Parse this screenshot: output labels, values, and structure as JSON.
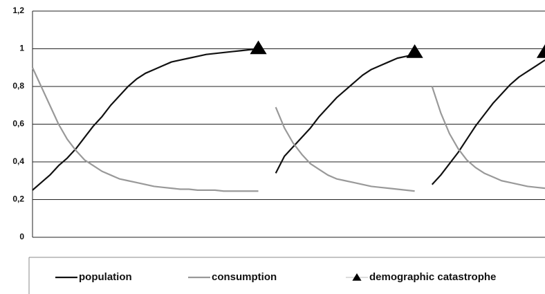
{
  "chart_data": {
    "type": "line",
    "categories": [
      null,
      null,
      null,
      null,
      null,
      null,
      null,
      null,
      null,
      null,
      null,
      null,
      null,
      null,
      null,
      null,
      null,
      null,
      null,
      null,
      null,
      null,
      null,
      null,
      null,
      null,
      null,
      null,
      null,
      null,
      null,
      null,
      null,
      null,
      null,
      null,
      null,
      null,
      null,
      null,
      null,
      null,
      null,
      null,
      null,
      null,
      null,
      null,
      null,
      null,
      null,
      null,
      null,
      null,
      null,
      null,
      null,
      null,
      null,
      null
    ],
    "series": [
      {
        "name": "population",
        "color": "#111111",
        "style": "line",
        "values": [
          0.25,
          0.29,
          0.33,
          0.38,
          0.42,
          0.47,
          0.53,
          0.59,
          0.64,
          0.7,
          0.75,
          0.8,
          0.84,
          0.87,
          0.89,
          0.91,
          0.93,
          0.94,
          0.95,
          0.96,
          0.97,
          0.975,
          0.98,
          0.985,
          0.99,
          0.995,
          1,
          null,
          0.34,
          0.43,
          0.48,
          0.53,
          0.58,
          0.64,
          0.69,
          0.74,
          0.78,
          0.82,
          0.86,
          0.89,
          0.91,
          0.93,
          0.95,
          0.96,
          0.97,
          null,
          0.28,
          0.33,
          0.39,
          0.45,
          0.52,
          0.59,
          0.65,
          0.71,
          0.76,
          0.81,
          0.85,
          0.88,
          0.91,
          0.94
        ]
      },
      {
        "name": "consumption",
        "color": "#999999",
        "style": "line",
        "values": [
          0.9,
          0.8,
          0.7,
          0.6,
          0.52,
          0.46,
          0.41,
          0.38,
          0.35,
          0.33,
          0.31,
          0.3,
          0.29,
          0.28,
          0.27,
          0.265,
          0.26,
          0.255,
          0.255,
          0.25,
          0.25,
          0.25,
          0.245,
          0.245,
          0.245,
          0.245,
          0.245,
          null,
          0.69,
          0.58,
          0.5,
          0.44,
          0.39,
          0.36,
          0.33,
          0.31,
          0.3,
          0.29,
          0.28,
          0.27,
          0.265,
          0.26,
          0.255,
          0.25,
          0.245,
          null,
          0.8,
          0.66,
          0.55,
          0.47,
          0.41,
          0.37,
          0.34,
          0.32,
          0.3,
          0.29,
          0.28,
          0.27,
          0.265,
          0.26
        ]
      },
      {
        "name": "demographic catastrophe",
        "color": "#000000",
        "style": "triangle",
        "values": [
          null,
          null,
          null,
          null,
          null,
          null,
          null,
          null,
          null,
          null,
          null,
          null,
          null,
          null,
          null,
          null,
          null,
          null,
          null,
          null,
          null,
          null,
          null,
          null,
          null,
          null,
          1,
          null,
          null,
          null,
          null,
          null,
          null,
          null,
          null,
          null,
          null,
          null,
          null,
          null,
          null,
          null,
          null,
          null,
          0.98,
          null,
          null,
          null,
          null,
          null,
          null,
          null,
          null,
          null,
          null,
          null,
          null,
          null,
          null,
          0.98
        ]
      }
    ],
    "ylim": [
      0,
      1.2
    ],
    "yticks": [
      0,
      {
        "value": 0.2,
        "label": "0,2"
      },
      {
        "value": 0.4,
        "label": "0,4"
      },
      {
        "value": 0.6,
        "label": "0,6"
      },
      {
        "value": 0.8,
        "label": "0,8"
      },
      1,
      {
        "value": 1.2,
        "label": "1,2"
      }
    ],
    "grid": true,
    "legend": "bottom"
  }
}
